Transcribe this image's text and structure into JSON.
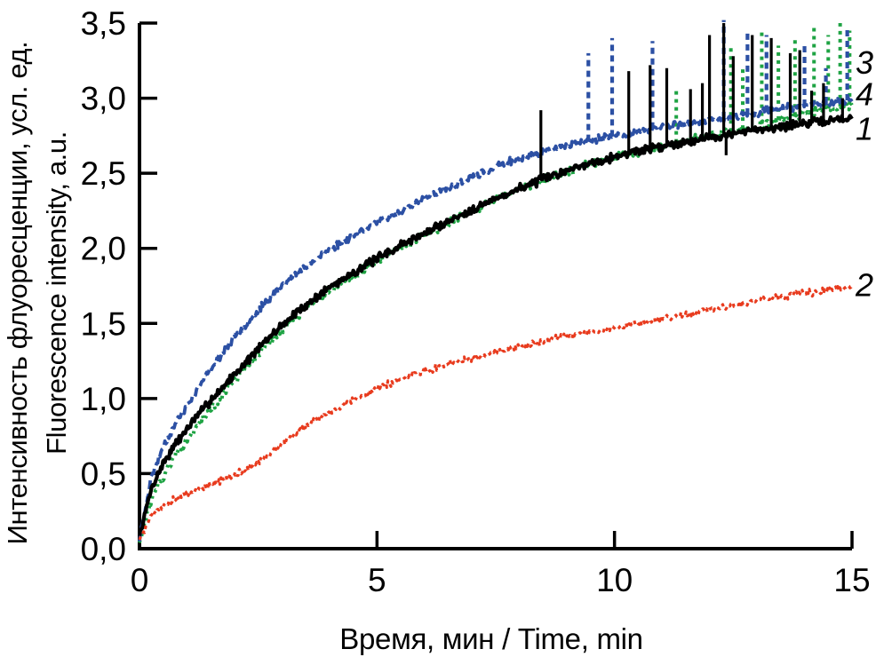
{
  "chart_data": {
    "type": "line",
    "title": "",
    "xlabel": "Время, мин / Time, min",
    "ylabel_ru": "Интенсивность флуоресценции, усл. ед.",
    "ylabel_en": "Fluorescence intensity, a.u.",
    "xlim": [
      0,
      15
    ],
    "ylim": [
      0,
      3.5
    ],
    "grid": false,
    "legend_position": "right-margin-numbers",
    "axis_color": "#000000",
    "x_ticks": [
      {
        "value": 0,
        "label": "0"
      },
      {
        "value": 5,
        "label": "5"
      },
      {
        "value": 10,
        "label": "10"
      },
      {
        "value": 15,
        "label": "15"
      }
    ],
    "y_ticks": [
      {
        "value": 0.0,
        "label": "0,0"
      },
      {
        "value": 0.5,
        "label": "0,5"
      },
      {
        "value": 1.0,
        "label": "1,0"
      },
      {
        "value": 1.5,
        "label": "1,5"
      },
      {
        "value": 2.0,
        "label": "2,0"
      },
      {
        "value": 2.5,
        "label": "2,5"
      },
      {
        "value": 3.0,
        "label": "3,0"
      },
      {
        "value": 3.5,
        "label": "3,5"
      }
    ],
    "series": [
      {
        "label": "3",
        "label_value": 3.24,
        "color": "#1ea343",
        "style": "dashed-dot",
        "dash": "3 5",
        "spike_dash": "4 5",
        "width": 4,
        "spike_width": 4,
        "noise": 0.035,
        "seed": 13,
        "anchors": [
          [
            0,
            0.05
          ],
          [
            0.25,
            0.33
          ],
          [
            0.5,
            0.48
          ],
          [
            0.75,
            0.61
          ],
          [
            1,
            0.73
          ],
          [
            1.5,
            0.93
          ],
          [
            2,
            1.12
          ],
          [
            2.5,
            1.3
          ],
          [
            3,
            1.46
          ],
          [
            3.5,
            1.6
          ],
          [
            4,
            1.72
          ],
          [
            4.5,
            1.82
          ],
          [
            5,
            1.92
          ],
          [
            5.5,
            2.01
          ],
          [
            6,
            2.09
          ],
          [
            6.5,
            2.17
          ],
          [
            7,
            2.25
          ],
          [
            7.5,
            2.32
          ],
          [
            8,
            2.39
          ],
          [
            8.5,
            2.45
          ],
          [
            9,
            2.51
          ],
          [
            9.5,
            2.56
          ],
          [
            10,
            2.6
          ],
          [
            10.5,
            2.64
          ],
          [
            11,
            2.68
          ],
          [
            11.5,
            2.72
          ],
          [
            12,
            2.75
          ],
          [
            12.5,
            2.78
          ],
          [
            13,
            2.82
          ],
          [
            13.5,
            2.86
          ],
          [
            14,
            2.9
          ],
          [
            14.5,
            2.93
          ],
          [
            15,
            2.96
          ]
        ],
        "spikes": [
          [
            11.3,
            3.05
          ],
          [
            12.45,
            3.35
          ],
          [
            12.7,
            3.22
          ],
          [
            13.1,
            3.46
          ],
          [
            13.45,
            3.35
          ],
          [
            13.8,
            3.4
          ],
          [
            14.2,
            3.48
          ],
          [
            14.5,
            3.42
          ],
          [
            14.75,
            3.5
          ],
          [
            14.95,
            3.45
          ]
        ]
      },
      {
        "label": "4",
        "label_value": 3.03,
        "color": "#2c50a4",
        "style": "dashed",
        "dash": "10 5",
        "spike_dash": "7 5",
        "width": 3.8,
        "spike_width": 4.2,
        "noise": 0.03,
        "seed": 23,
        "anchors": [
          [
            0,
            0.06
          ],
          [
            0.25,
            0.48
          ],
          [
            0.5,
            0.68
          ],
          [
            0.75,
            0.83
          ],
          [
            1,
            0.95
          ],
          [
            1.5,
            1.2
          ],
          [
            2,
            1.41
          ],
          [
            2.5,
            1.59
          ],
          [
            3,
            1.75
          ],
          [
            3.5,
            1.88
          ],
          [
            4,
            1.99
          ],
          [
            4.5,
            2.09
          ],
          [
            5,
            2.17
          ],
          [
            5.5,
            2.25
          ],
          [
            6,
            2.33
          ],
          [
            6.5,
            2.4
          ],
          [
            7,
            2.47
          ],
          [
            7.5,
            2.54
          ],
          [
            8,
            2.6
          ],
          [
            8.5,
            2.64
          ],
          [
            9,
            2.68
          ],
          [
            9.5,
            2.72
          ],
          [
            10,
            2.75
          ],
          [
            10.5,
            2.78
          ],
          [
            11,
            2.81
          ],
          [
            11.5,
            2.83
          ],
          [
            12,
            2.85
          ],
          [
            12.5,
            2.88
          ],
          [
            13,
            2.9
          ],
          [
            13.5,
            2.93
          ],
          [
            14,
            2.95
          ],
          [
            14.5,
            2.97
          ],
          [
            15,
            2.99
          ]
        ],
        "spikes": [
          [
            9.45,
            3.3
          ],
          [
            9.95,
            3.4
          ],
          [
            10.8,
            3.38
          ],
          [
            12.3,
            3.52
          ],
          [
            12.8,
            3.45
          ],
          [
            13.2,
            3.42
          ],
          [
            14.0,
            3.36
          ],
          [
            14.45,
            3.2
          ],
          [
            14.9,
            3.47
          ]
        ]
      },
      {
        "label": "1",
        "label_value": 2.8,
        "color": "#000000",
        "style": "solid",
        "dash": null,
        "spike_dash": null,
        "width": 4.2,
        "spike_width": 3.2,
        "noise": 0.035,
        "seed": 7,
        "anchors": [
          [
            0,
            0.08
          ],
          [
            0.25,
            0.4
          ],
          [
            0.5,
            0.57
          ],
          [
            0.75,
            0.69
          ],
          [
            1,
            0.8
          ],
          [
            1.5,
            0.99
          ],
          [
            2,
            1.16
          ],
          [
            2.5,
            1.33
          ],
          [
            3,
            1.49
          ],
          [
            3.5,
            1.62
          ],
          [
            4,
            1.74
          ],
          [
            4.5,
            1.84
          ],
          [
            5,
            1.93
          ],
          [
            5.5,
            2.02
          ],
          [
            6,
            2.1
          ],
          [
            6.5,
            2.18
          ],
          [
            7,
            2.26
          ],
          [
            7.5,
            2.33
          ],
          [
            8,
            2.4
          ],
          [
            8.5,
            2.46
          ],
          [
            9,
            2.52
          ],
          [
            9.5,
            2.57
          ],
          [
            10,
            2.61
          ],
          [
            10.5,
            2.65
          ],
          [
            11,
            2.68
          ],
          [
            11.5,
            2.71
          ],
          [
            12,
            2.74
          ],
          [
            12.5,
            2.76
          ],
          [
            13,
            2.79
          ],
          [
            13.5,
            2.81
          ],
          [
            14,
            2.83
          ],
          [
            14.5,
            2.85
          ],
          [
            15,
            2.87
          ]
        ],
        "spikes": [
          [
            8.45,
            2.92
          ],
          [
            10.3,
            3.18
          ],
          [
            10.75,
            3.22
          ],
          [
            11.1,
            3.2
          ],
          [
            11.6,
            3.06
          ],
          [
            11.85,
            3.1
          ],
          [
            12.0,
            3.42
          ],
          [
            12.3,
            3.5
          ],
          [
            12.35,
            2.62
          ],
          [
            12.5,
            3.28
          ],
          [
            12.9,
            3.42
          ],
          [
            13.3,
            3.4
          ],
          [
            13.7,
            3.3
          ],
          [
            13.9,
            3.32
          ],
          [
            14.15,
            3.05
          ],
          [
            14.4,
            3.1
          ],
          [
            14.8,
            3.0
          ]
        ]
      },
      {
        "label": "2",
        "label_value": 1.76,
        "color": "#e83b1e",
        "style": "dotted",
        "dash": "4 4",
        "spike_dash": "4 4",
        "width": 3.2,
        "spike_width": 3.2,
        "noise": 0.028,
        "seed": 5,
        "anchors": [
          [
            0,
            0.06
          ],
          [
            0.25,
            0.22
          ],
          [
            0.5,
            0.29
          ],
          [
            0.75,
            0.33
          ],
          [
            1,
            0.37
          ],
          [
            1.5,
            0.43
          ],
          [
            2,
            0.49
          ],
          [
            2.5,
            0.57
          ],
          [
            3,
            0.7
          ],
          [
            3.5,
            0.81
          ],
          [
            4,
            0.91
          ],
          [
            4.5,
            0.99
          ],
          [
            5,
            1.06
          ],
          [
            5.5,
            1.13
          ],
          [
            6,
            1.18
          ],
          [
            6.5,
            1.23
          ],
          [
            7,
            1.27
          ],
          [
            7.5,
            1.31
          ],
          [
            8,
            1.35
          ],
          [
            8.5,
            1.38
          ],
          [
            9,
            1.41
          ],
          [
            9.5,
            1.44
          ],
          [
            10,
            1.47
          ],
          [
            10.5,
            1.5
          ],
          [
            11,
            1.53
          ],
          [
            11.5,
            1.56
          ],
          [
            12,
            1.59
          ],
          [
            12.5,
            1.62
          ],
          [
            13,
            1.65
          ],
          [
            13.5,
            1.68
          ],
          [
            14,
            1.7
          ],
          [
            14.5,
            1.72
          ],
          [
            15,
            1.75
          ]
        ],
        "spikes": []
      }
    ]
  }
}
